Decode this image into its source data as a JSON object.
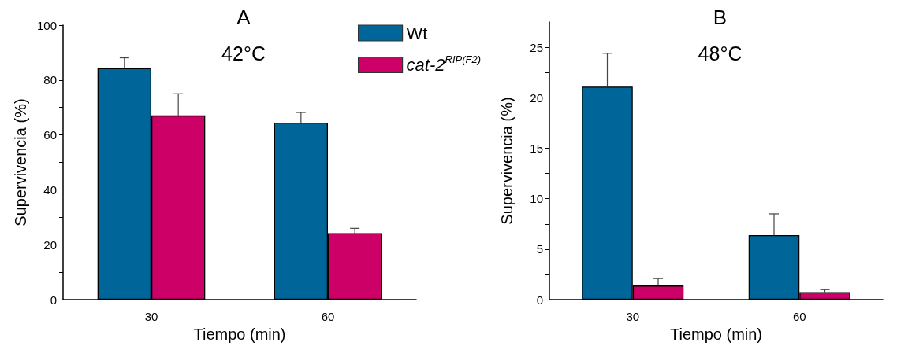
{
  "chart_data": [
    {
      "type": "bar",
      "title": "A",
      "subtitle": "42°C",
      "xlabel": "Tiempo (min)",
      "ylabel": "Supervivencia (%)",
      "categories": [
        "30",
        "60"
      ],
      "series": [
        {
          "name": "Wt",
          "color": "#006699",
          "values": [
            84.3,
            64.5
          ],
          "errors": [
            [
              84.3,
              88.1
            ],
            [
              64.5,
              68.2
            ]
          ]
        },
        {
          "name": "cat-2$^{RIP(F2)}$",
          "color": "#cc0066",
          "values": [
            67.1,
            24.2
          ],
          "errors": [
            [
              67.1,
              75.0
            ],
            [
              24.2,
              26.0
            ]
          ]
        }
      ],
      "ylim": [
        0,
        100
      ],
      "yticks": [
        0,
        {
          "value": 10,
          "label": null
        },
        20,
        {
          "value": 30,
          "label": null
        },
        40,
        {
          "value": 50,
          "label": null
        },
        60,
        {
          "value": 70,
          "label": null
        },
        80,
        {
          "value": 90,
          "label": null
        },
        100
      ],
      "grid": false,
      "legend": "top right"
    },
    {
      "type": "bar",
      "title": "B",
      "subtitle": "48°C",
      "xlabel": "Tiempo (min)",
      "ylabel": "Supervivencia (%)",
      "categories": [
        "30",
        "60"
      ],
      "series": [
        {
          "color": "#006699",
          "values": [
            21.1,
            6.4
          ],
          "errors": [
            [
              21.1,
              24.4
            ],
            [
              6.4,
              8.5
            ]
          ]
        },
        {
          "color": "#cc0066",
          "values": [
            1.4,
            0.75
          ],
          "errors": [
            [
              1.4,
              2.1
            ],
            [
              0.75,
              1.0
            ]
          ]
        }
      ],
      "ylim": [
        0,
        27.5
      ],
      "yticks": [
        0,
        {
          "value": 2.5,
          "label": null
        },
        5,
        {
          "value": 7.5,
          "label": null
        },
        10,
        {
          "value": 12.5,
          "label": null
        },
        15,
        {
          "value": 17.5,
          "label": null
        },
        20,
        {
          "value": 22.5,
          "label": null
        },
        25
      ],
      "grid": false,
      "legend": false
    }
  ]
}
